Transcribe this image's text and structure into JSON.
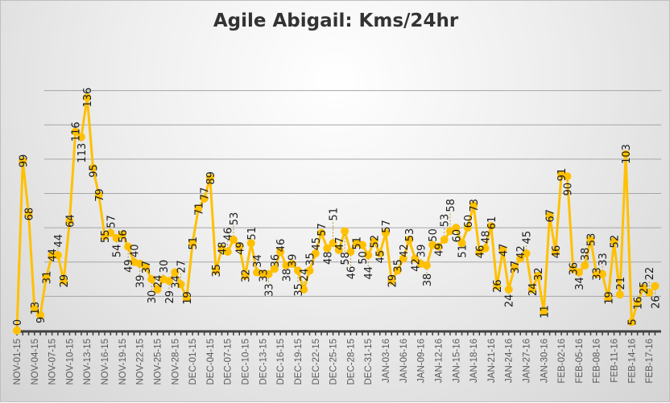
{
  "chart_data": {
    "type": "line",
    "title": "Agile Abigail: Kms/24hr",
    "xlabel": "",
    "ylabel": "",
    "ylim": [
      0,
      160
    ],
    "grid": true,
    "legend": "none",
    "data_labels": true,
    "x_interval": "daily",
    "tick_labels": [
      "NOV-01-15",
      "NOV-04-15",
      "NOV-07-15",
      "NOV-10-15",
      "NOV-13-15",
      "NOV-16-15",
      "NOV-19-15",
      "NOV-22-15",
      "NOV-25-15",
      "NOV-28-15",
      "DEC-01-15",
      "DEC-04-15",
      "DEC-07-15",
      "DEC-10-15",
      "DEC-13-15",
      "DEC-16-15",
      "DEC-19-15",
      "DEC-22-15",
      "DEC-25-15",
      "DEC-28-15",
      "DEC-31-15",
      "JAN-03-16",
      "JAN-06-16",
      "JAN-09-16",
      "JAN-12-16",
      "JAN-15-16",
      "JAN-18-16",
      "JAN-21-16",
      "JAN-24-16",
      "JAN-27-16",
      "JAN-30-16",
      "FEB-02-16",
      "FEB-05-16",
      "FEB-08-16",
      "FEB-11-16",
      "FEB-14-16",
      "FEB-17-16"
    ],
    "values": [
      0,
      99,
      68,
      13,
      9,
      31,
      44,
      44,
      29,
      64,
      116,
      113,
      136,
      95,
      79,
      55,
      57,
      54,
      56,
      49,
      40,
      39,
      37,
      30,
      24,
      30,
      29,
      34,
      27,
      19,
      51,
      71,
      77,
      89,
      35,
      48,
      46,
      53,
      49,
      32,
      51,
      34,
      33,
      33,
      36,
      46,
      38,
      39,
      35,
      24,
      35,
      45,
      57,
      48,
      51,
      47,
      58,
      46,
      51,
      50,
      44,
      52,
      45,
      57,
      29,
      35,
      42,
      53,
      42,
      39,
      38,
      50,
      49,
      53,
      58,
      60,
      51,
      60,
      73,
      46,
      48,
      61,
      26,
      47,
      24,
      37,
      42,
      45,
      24,
      32,
      11,
      67,
      46,
      91,
      90,
      36,
      34,
      38,
      53,
      33,
      33,
      19,
      52,
      21,
      103,
      5,
      16,
      25,
      22,
      26
    ],
    "colors": {
      "series": "#FFC000",
      "label": "#1a1a1a",
      "axis": "#404040",
      "grid": "#a6a6a6",
      "tick_label": "#595959"
    }
  }
}
